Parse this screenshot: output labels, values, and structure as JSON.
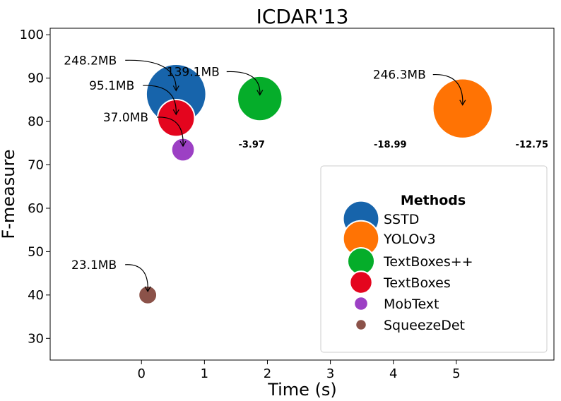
{
  "chart_data": {
    "type": "scatter",
    "title": "ICDAR'13",
    "xlabel": "Time (s)",
    "ylabel": "F-measure",
    "xlim": [
      -1.45,
      6.55
    ],
    "ylim": [
      25,
      101.5
    ],
    "xticks": [
      0,
      1,
      2,
      3,
      4,
      5
    ],
    "yticks": [
      30,
      40,
      50,
      60,
      70,
      80,
      90,
      100
    ],
    "grid": false,
    "legend": {
      "title": "Methods",
      "placement": "lower-right"
    },
    "series": [
      {
        "name": "SSTD",
        "x": 0.55,
        "y": 86.3,
        "size_mb": 248.2,
        "label": "248.2MB",
        "color": "#1764ab"
      },
      {
        "name": "YOLOv3",
        "x": 5.1,
        "y": 83.0,
        "size_mb": 246.3,
        "label": "246.3MB",
        "color": "#ff7304"
      },
      {
        "name": "TextBoxes++",
        "x": 1.88,
        "y": 85.3,
        "size_mb": 139.1,
        "label": "139.1MB",
        "color": "#05ad2a"
      },
      {
        "name": "TextBoxes",
        "x": 0.55,
        "y": 80.8,
        "size_mb": 95.1,
        "label": "95.1MB",
        "color": "#e4051e"
      },
      {
        "name": "MobText",
        "x": 0.66,
        "y": 73.5,
        "size_mb": 37.0,
        "label": "37.0MB",
        "color": "#9c40c4"
      },
      {
        "name": "SqueezeDet",
        "x": 0.1,
        "y": 40.0,
        "size_mb": 23.1,
        "label": "23.1MB",
        "color": "#8b5249"
      }
    ],
    "extra_labels": [
      {
        "text": "-3.97",
        "x": 1.75,
        "y": 74.0
      },
      {
        "text": "-18.99",
        "x": 3.95,
        "y": 74.0
      },
      {
        "text": "-12.75",
        "x": 6.2,
        "y": 74.0
      }
    ]
  }
}
